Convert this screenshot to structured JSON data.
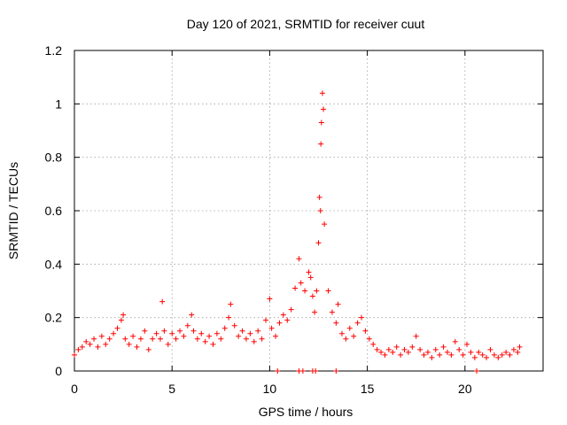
{
  "chart_data": {
    "type": "scatter",
    "title": "Day 120 of 2021, SRMTID for receiver cuut",
    "xlabel": "GPS time / hours",
    "ylabel": "SRMTID / TECUs",
    "xlim": [
      0,
      24
    ],
    "ylim": [
      0,
      1.2
    ],
    "xticks": [
      0,
      5,
      10,
      15,
      20
    ],
    "xtick_labels": [
      "0",
      "5",
      "10",
      "15",
      "20"
    ],
    "yticks": [
      0,
      0.2,
      0.4,
      0.6,
      0.8,
      1.0,
      1.2
    ],
    "ytick_labels": [
      "0",
      "0.2",
      "0.4",
      "0.6",
      "0.8",
      "1",
      "1.2"
    ],
    "grid": true,
    "marker": "+",
    "series": [
      {
        "name": "SRMTID",
        "color": "#ff0000",
        "x": [
          0.0,
          0.2,
          0.4,
          0.6,
          0.8,
          1.0,
          1.2,
          1.4,
          1.6,
          1.8,
          2.0,
          2.2,
          2.4,
          2.5,
          2.6,
          2.8,
          3.0,
          3.2,
          3.4,
          3.6,
          3.8,
          4.0,
          4.2,
          4.4,
          4.5,
          4.6,
          4.8,
          5.0,
          5.2,
          5.4,
          5.6,
          5.8,
          6.0,
          6.1,
          6.3,
          6.5,
          6.7,
          6.9,
          7.1,
          7.3,
          7.5,
          7.7,
          7.9,
          8.0,
          8.2,
          8.4,
          8.6,
          8.8,
          9.0,
          9.2,
          9.4,
          9.6,
          9.8,
          10.0,
          10.1,
          10.3,
          10.5,
          10.7,
          10.9,
          11.1,
          11.3,
          11.5,
          11.6,
          11.8,
          12.0,
          12.1,
          12.2,
          12.3,
          12.4,
          12.5,
          12.55,
          12.6,
          12.62,
          12.65,
          12.7,
          12.75,
          12.8,
          13.0,
          13.2,
          13.4,
          13.5,
          13.7,
          13.9,
          14.1,
          14.3,
          14.5,
          14.7,
          14.9,
          15.1,
          15.3,
          15.5,
          15.7,
          15.9,
          16.1,
          16.3,
          16.5,
          16.7,
          16.9,
          17.1,
          17.3,
          17.5,
          17.7,
          17.9,
          18.1,
          18.3,
          18.5,
          18.7,
          18.9,
          19.1,
          19.3,
          19.5,
          19.7,
          19.9,
          20.1,
          20.3,
          20.5,
          20.7,
          20.9,
          21.1,
          21.3,
          21.5,
          21.7,
          21.9,
          22.1,
          22.3,
          22.5,
          22.7,
          22.8
        ],
        "y": [
          0.06,
          0.08,
          0.09,
          0.11,
          0.1,
          0.12,
          0.09,
          0.13,
          0.1,
          0.12,
          0.14,
          0.16,
          0.19,
          0.21,
          0.12,
          0.1,
          0.13,
          0.09,
          0.12,
          0.15,
          0.08,
          0.12,
          0.14,
          0.12,
          0.26,
          0.15,
          0.1,
          0.14,
          0.12,
          0.15,
          0.13,
          0.17,
          0.21,
          0.15,
          0.12,
          0.14,
          0.11,
          0.13,
          0.1,
          0.14,
          0.12,
          0.16,
          0.2,
          0.25,
          0.17,
          0.13,
          0.15,
          0.12,
          0.14,
          0.11,
          0.15,
          0.12,
          0.19,
          0.27,
          0.16,
          0.13,
          0.18,
          0.21,
          0.19,
          0.23,
          0.31,
          0.42,
          0.33,
          0.3,
          0.37,
          0.35,
          0.28,
          0.22,
          0.3,
          0.48,
          0.65,
          0.6,
          0.85,
          0.93,
          1.04,
          0.98,
          0.55,
          0.3,
          0.22,
          0.18,
          0.25,
          0.14,
          0.12,
          0.16,
          0.13,
          0.18,
          0.2,
          0.15,
          0.12,
          0.1,
          0.08,
          0.07,
          0.06,
          0.08,
          0.07,
          0.09,
          0.06,
          0.08,
          0.07,
          0.09,
          0.13,
          0.08,
          0.06,
          0.07,
          0.05,
          0.08,
          0.06,
          0.09,
          0.07,
          0.06,
          0.11,
          0.08,
          0.06,
          0.1,
          0.07,
          0.05,
          0.07,
          0.06,
          0.05,
          0.08,
          0.06,
          0.05,
          0.06,
          0.07,
          0.06,
          0.08,
          0.07,
          0.09
        ]
      }
    ],
    "zero_markers_x": [
      10.4,
      11.5,
      11.7,
      12.2,
      12.35,
      13.4,
      20.6
    ]
  }
}
